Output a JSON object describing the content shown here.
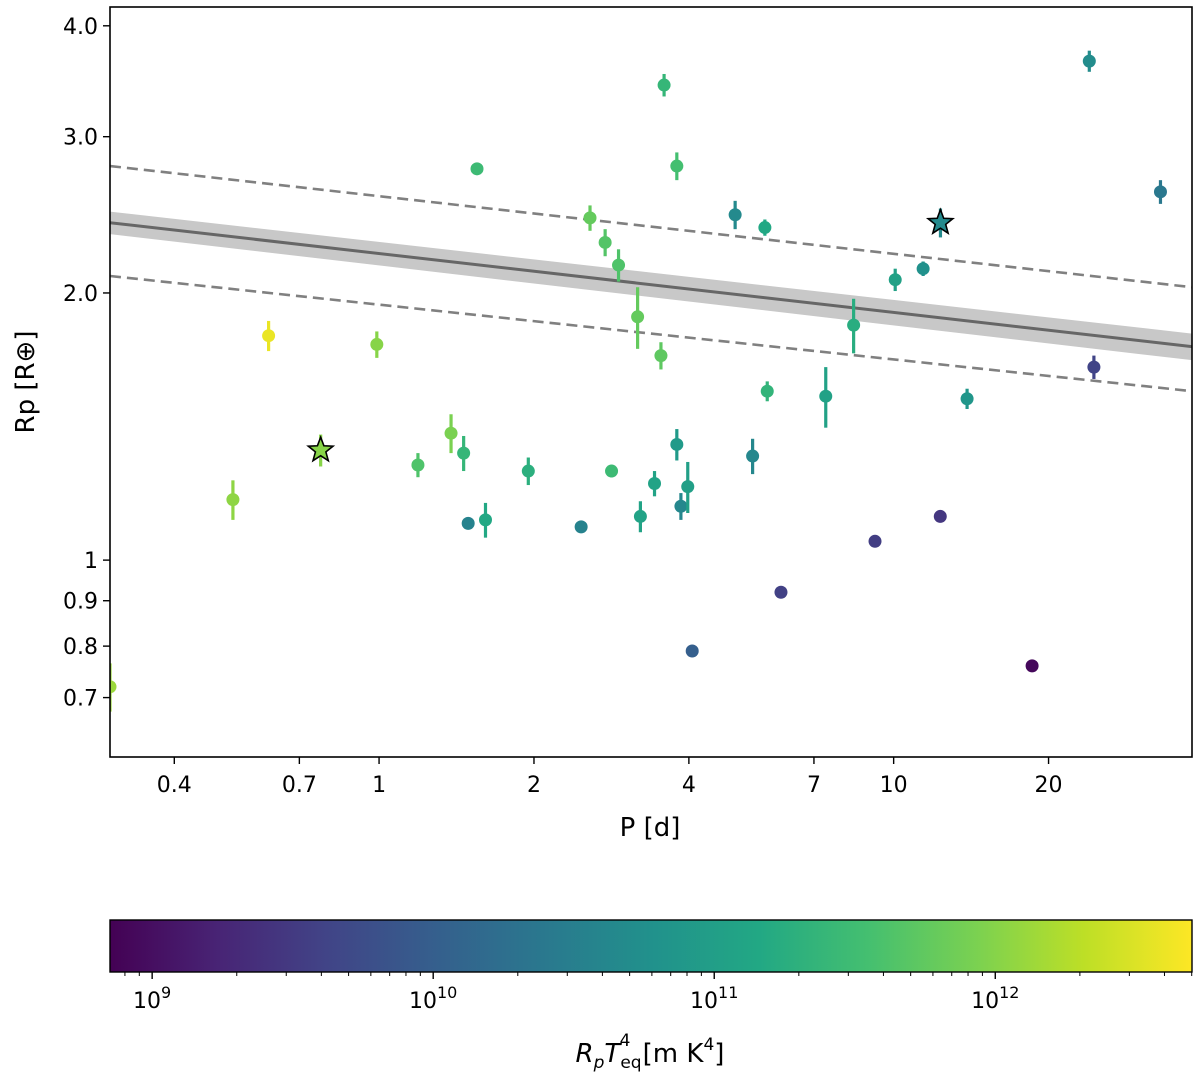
{
  "chart_data": {
    "type": "scatter",
    "xlabel": "P [d]",
    "ylabel": "Rp [R⊕]",
    "x_scale": "log",
    "y_scale": "log",
    "xlim": [
      0.3,
      38
    ],
    "ylim": [
      0.6,
      4.2
    ],
    "x_ticks": [
      {
        "value": 0.4,
        "label": "0.4"
      },
      {
        "value": 0.7,
        "label": "0.7"
      },
      {
        "value": 1,
        "label": "1"
      },
      {
        "value": 2,
        "label": "2"
      },
      {
        "value": 4,
        "label": "4"
      },
      {
        "value": 7,
        "label": "7"
      },
      {
        "value": 10,
        "label": "10"
      },
      {
        "value": 20,
        "label": "20"
      }
    ],
    "y_ticks": [
      {
        "value": 0.7,
        "label": "0.7"
      },
      {
        "value": 0.8,
        "label": "0.8"
      },
      {
        "value": 0.9,
        "label": "0.9"
      },
      {
        "value": 1,
        "label": "1"
      },
      {
        "value": 2,
        "label": "2.0"
      },
      {
        "value": 3,
        "label": "3.0"
      },
      {
        "value": 4,
        "label": "4.0"
      }
    ],
    "fit": {
      "line": {
        "p_start": 0.3,
        "r_start": 2.4,
        "p_end": 38,
        "r_end": 1.74,
        "color": "#666666"
      },
      "band": {
        "r_start_low": 2.33,
        "r_start_high": 2.47,
        "r_end_low": 1.68,
        "r_end_high": 1.8,
        "color": "#c8c8c8"
      },
      "dashed_upper": {
        "r_start": 2.78,
        "r_end": 2.03,
        "color": "#808080"
      },
      "dashed_lower": {
        "r_start": 2.09,
        "r_end": 1.55,
        "color": "#808080"
      }
    },
    "colorbar": {
      "label_main": "R",
      "label_sub_p": "p",
      "label_T": "T",
      "label_sub": "eq",
      "label_sup": "4",
      "label_unit": " [m K",
      "label_unit_sup": "4",
      "label_close": "]",
      "log_min": 8.85,
      "log_max": 12.7,
      "ticks": [
        {
          "exp": 9,
          "base": "10",
          "sup": "9"
        },
        {
          "exp": 10,
          "base": "10",
          "sup": "10"
        },
        {
          "exp": 11,
          "base": "10",
          "sup": "11"
        },
        {
          "exp": 12,
          "base": "10",
          "sup": "12"
        }
      ]
    },
    "points": [
      {
        "p": 0.3,
        "r": 0.72,
        "err": 0.045,
        "cval": 0.85,
        "marker": "circle"
      },
      {
        "p": 0.52,
        "r": 1.17,
        "err": 0.06,
        "cval": 0.83,
        "marker": "circle"
      },
      {
        "p": 0.61,
        "r": 1.79,
        "err": 0.07,
        "cval": 0.97,
        "marker": "circle"
      },
      {
        "p": 0.77,
        "r": 1.33,
        "err": 0.055,
        "cval": 0.82,
        "marker": "star"
      },
      {
        "p": 0.99,
        "r": 1.75,
        "err": 0.06,
        "cval": 0.82,
        "marker": "circle"
      },
      {
        "p": 1.19,
        "r": 1.28,
        "err": 0.04,
        "cval": 0.72,
        "marker": "circle"
      },
      {
        "p": 1.38,
        "r": 1.39,
        "err": 0.07,
        "cval": 0.8,
        "marker": "circle"
      },
      {
        "p": 1.46,
        "r": 1.32,
        "err": 0.06,
        "cval": 0.66,
        "marker": "circle"
      },
      {
        "p": 1.49,
        "r": 1.1,
        "err": 0,
        "cval": 0.44,
        "marker": "circle"
      },
      {
        "p": 1.55,
        "r": 2.76,
        "err": 0.02,
        "cval": 0.68,
        "marker": "circle"
      },
      {
        "p": 1.61,
        "r": 1.11,
        "err": 0.05,
        "cval": 0.6,
        "marker": "circle"
      },
      {
        "p": 1.95,
        "r": 1.26,
        "err": 0.045,
        "cval": 0.63,
        "marker": "circle"
      },
      {
        "p": 2.47,
        "r": 1.09,
        "err": 0,
        "cval": 0.44,
        "marker": "circle"
      },
      {
        "p": 2.57,
        "r": 2.43,
        "err": 0.08,
        "cval": 0.76,
        "marker": "circle"
      },
      {
        "p": 2.75,
        "r": 2.28,
        "err": 0.08,
        "cval": 0.73,
        "marker": "circle"
      },
      {
        "p": 2.83,
        "r": 1.26,
        "err": 0.02,
        "cval": 0.68,
        "marker": "circle"
      },
      {
        "p": 2.92,
        "r": 2.15,
        "err": 0.09,
        "cval": 0.72,
        "marker": "circle"
      },
      {
        "p": 3.18,
        "r": 1.88,
        "err": 0.15,
        "cval": 0.76,
        "marker": "circle"
      },
      {
        "p": 3.22,
        "r": 1.12,
        "err": 0.045,
        "cval": 0.58,
        "marker": "circle"
      },
      {
        "p": 3.43,
        "r": 1.22,
        "err": 0.04,
        "cval": 0.58,
        "marker": "circle"
      },
      {
        "p": 3.53,
        "r": 1.7,
        "err": 0.06,
        "cval": 0.75,
        "marker": "circle"
      },
      {
        "p": 3.58,
        "r": 3.43,
        "err": 0.1,
        "cval": 0.66,
        "marker": "circle"
      },
      {
        "p": 3.79,
        "r": 2.78,
        "err": 0.1,
        "cval": 0.7,
        "marker": "circle"
      },
      {
        "p": 3.79,
        "r": 1.35,
        "err": 0.055,
        "cval": 0.54,
        "marker": "circle"
      },
      {
        "p": 3.86,
        "r": 1.15,
        "err": 0.04,
        "cval": 0.46,
        "marker": "circle"
      },
      {
        "p": 3.98,
        "r": 1.21,
        "err": 0.08,
        "cval": 0.56,
        "marker": "circle"
      },
      {
        "p": 4.06,
        "r": 0.79,
        "err": 0,
        "cval": 0.3,
        "marker": "circle"
      },
      {
        "p": 4.92,
        "r": 2.45,
        "err": 0.09,
        "cval": 0.47,
        "marker": "circle"
      },
      {
        "p": 5.32,
        "r": 1.31,
        "err": 0.06,
        "cval": 0.46,
        "marker": "circle"
      },
      {
        "p": 5.62,
        "r": 2.37,
        "err": 0.05,
        "cval": 0.6,
        "marker": "circle"
      },
      {
        "p": 5.68,
        "r": 1.55,
        "err": 0.04,
        "cval": 0.65,
        "marker": "circle"
      },
      {
        "p": 6.04,
        "r": 0.92,
        "err": 0,
        "cval": 0.19,
        "marker": "circle"
      },
      {
        "p": 7.38,
        "r": 1.53,
        "err": 0.12,
        "cval": 0.57,
        "marker": "circle"
      },
      {
        "p": 8.36,
        "r": 1.84,
        "err": 0.13,
        "cval": 0.62,
        "marker": "circle"
      },
      {
        "p": 9.2,
        "r": 1.05,
        "err": 0,
        "cval": 0.18,
        "marker": "circle"
      },
      {
        "p": 10.07,
        "r": 2.07,
        "err": 0.06,
        "cval": 0.57,
        "marker": "circle"
      },
      {
        "p": 11.41,
        "r": 2.13,
        "err": 0.04,
        "cval": 0.5,
        "marker": "circle"
      },
      {
        "p": 12.32,
        "r": 1.12,
        "err": 0,
        "cval": 0.16,
        "marker": "circle"
      },
      {
        "p": 12.33,
        "r": 2.4,
        "err": 0.09,
        "cval": 0.47,
        "marker": "star"
      },
      {
        "p": 13.89,
        "r": 1.52,
        "err": 0.04,
        "cval": 0.52,
        "marker": "circle"
      },
      {
        "p": 18.58,
        "r": 0.76,
        "err": 0,
        "cval": 0.02,
        "marker": "circle"
      },
      {
        "p": 24.0,
        "r": 3.65,
        "err": 0.1,
        "cval": 0.48,
        "marker": "circle"
      },
      {
        "p": 24.5,
        "r": 1.65,
        "err": 0.05,
        "cval": 0.2,
        "marker": "circle"
      },
      {
        "p": 33.0,
        "r": 2.6,
        "err": 0.08,
        "cval": 0.4,
        "marker": "circle"
      }
    ]
  }
}
